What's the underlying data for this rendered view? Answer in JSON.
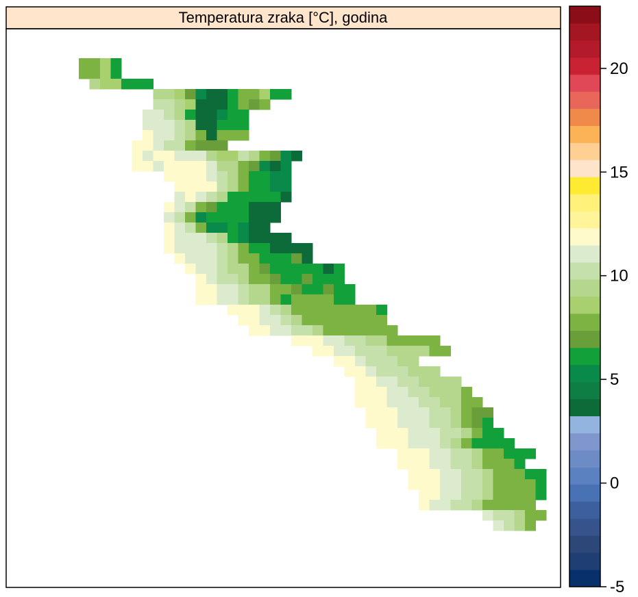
{
  "chart_data": {
    "type": "heatmap",
    "title": "Temperatura zraka [°C], godina",
    "colorbar": {
      "min": -5,
      "max": 23,
      "ticks": [
        -5,
        0,
        5,
        10,
        15,
        20
      ],
      "tick_labels": [
        "-5",
        "0",
        "5",
        "10",
        "15",
        "20"
      ],
      "colors": [
        "#08306b",
        "#1f3e73",
        "#2c4778",
        "#37538b",
        "#3c5f9e",
        "#4872b4",
        "#5b81c0",
        "#6d8cc6",
        "#7f97cd",
        "#93b4de",
        "#0d6b3a",
        "#0e7e44",
        "#098a4a",
        "#12a03b",
        "#6a9e3a",
        "#7cb342",
        "#a8d06e",
        "#b5d68d",
        "#c6e0ac",
        "#dceacd",
        "#fffacb",
        "#fff49a",
        "#fff179",
        "#ffea32",
        "#ffe4cc",
        "#ffcf93",
        "#fcb257",
        "#f08a4b",
        "#e8675a",
        "#e04858",
        "#c92233",
        "#b31b2c",
        "#a41621",
        "#8b0d18"
      ]
    },
    "grid": {
      "x_origin": 22,
      "y_origin": 55,
      "cell_width": 15.5,
      "cell_height": 15,
      "value_rows": [
        [
          2,
          6,
          [
            7.5,
            8,
            8.5,
            6.5
          ]
        ],
        [
          3,
          6,
          [
            8,
            8,
            8.5,
            6.5
          ]
        ],
        [
          4,
          7,
          [
            9,
            8.5,
            8.5,
            6,
            6,
            6
          ]
        ],
        [
          5,
          13,
          [
            9,
            9.5,
            8.5,
            7,
            5,
            4,
            4,
            6.5,
            8,
            8,
            8.5,
            6.5,
            6
          ]
        ],
        [
          6,
          13,
          [
            10.5,
            10,
            9.5,
            8.5,
            4,
            4,
            4,
            6.5,
            8,
            7,
            8
          ]
        ],
        [
          7,
          12,
          [
            11,
            11,
            10,
            9,
            6,
            4,
            4,
            5,
            6,
            6
          ]
        ],
        [
          8,
          12,
          [
            11,
            11,
            11,
            10,
            9,
            4,
            4,
            6,
            6,
            6
          ]
        ],
        [
          9,
          12,
          [
            12,
            11,
            11,
            10,
            9.5,
            8,
            3.5,
            7.5,
            8,
            8
          ]
        ],
        [
          10,
          11,
          [
            12,
            12,
            11,
            10,
            10,
            8,
            7,
            7,
            7
          ]
        ],
        [
          11,
          11,
          [
            12,
            11,
            12,
            12,
            11,
            11,
            11,
            9,
            8.5,
            8.5,
            10,
            9,
            8,
            7,
            5,
            4
          ]
        ],
        [
          12,
          11,
          [
            12,
            12,
            11,
            12,
            12,
            12,
            12,
            11,
            9,
            9,
            8,
            7,
            5,
            4,
            5
          ]
        ],
        [
          13,
          14,
          [
            12,
            12,
            12,
            12,
            11,
            10,
            9,
            8,
            6,
            6,
            5,
            5
          ]
        ],
        [
          14,
          15,
          [
            12,
            12,
            12,
            12,
            10,
            9.5,
            8,
            6,
            6,
            5.5,
            5
          ]
        ],
        [
          15,
          15,
          [
            11,
            12,
            11,
            10,
            9,
            6,
            6,
            6,
            6,
            6,
            4
          ]
        ],
        [
          16,
          14,
          [
            12,
            11,
            10,
            8,
            7,
            6,
            6,
            6,
            4,
            4,
            4
          ]
        ],
        [
          17,
          14,
          [
            11,
            10,
            8,
            5,
            6,
            6,
            6,
            6,
            4,
            4,
            4
          ]
        ],
        [
          18,
          14,
          [
            12,
            11,
            10,
            8,
            5,
            5.5,
            6,
            5,
            4,
            4
          ]
        ],
        [
          19,
          14,
          [
            12,
            11,
            11,
            11,
            10,
            9,
            6,
            5,
            4,
            4,
            4,
            4
          ]
        ],
        [
          20,
          14,
          [
            12,
            11,
            11,
            11,
            11,
            10,
            9,
            8,
            6,
            6,
            4,
            4,
            3.5,
            3.5
          ]
        ],
        [
          21,
          15,
          [
            12,
            11,
            11,
            11,
            10,
            9,
            8,
            8,
            6,
            6,
            6,
            7,
            4
          ]
        ],
        [
          22,
          16,
          [
            12,
            11,
            11,
            10,
            9,
            9,
            8,
            7,
            6,
            6,
            6,
            6,
            6,
            4,
            6
          ]
        ],
        [
          23,
          17,
          [
            12,
            11,
            10,
            10,
            9,
            8,
            8,
            7,
            6,
            6,
            7,
            6,
            6,
            6
          ]
        ],
        [
          24,
          17,
          [
            12,
            12,
            11,
            11,
            10,
            9,
            9,
            8,
            8,
            7,
            6,
            6,
            7,
            6,
            6
          ]
        ],
        [
          25,
          17,
          [
            12,
            12,
            11,
            11,
            10,
            9,
            9,
            8,
            6,
            8,
            8,
            8,
            8,
            6,
            6
          ]
        ],
        [
          26,
          20,
          [
            12,
            12,
            12,
            11,
            10,
            9,
            8,
            8,
            8,
            8,
            8,
            8,
            8,
            8,
            6
          ]
        ],
        [
          27,
          21,
          [
            12,
            12,
            11,
            11,
            10,
            9,
            8,
            8,
            8,
            8,
            8,
            8,
            8,
            8
          ]
        ],
        [
          28,
          22,
          [
            12,
            12,
            11,
            11,
            10,
            10,
            9,
            8,
            8,
            8,
            8,
            8,
            8,
            8
          ]
        ],
        [
          29,
          26,
          [
            12,
            12,
            12,
            11,
            11,
            10,
            10,
            9,
            9,
            8,
            8,
            8,
            8,
            8
          ]
        ],
        [
          30,
          28,
          [
            12,
            12,
            11,
            11,
            10,
            10,
            10,
            9,
            9,
            9,
            9,
            8,
            8
          ]
        ],
        [
          31,
          30,
          [
            12,
            12,
            11,
            10,
            10,
            10,
            9,
            9
          ]
        ],
        [
          32,
          31,
          [
            12,
            12,
            11,
            10,
            10,
            10,
            9,
            9,
            9
          ]
        ],
        [
          33,
          32,
          [
            12,
            12,
            11,
            11,
            10,
            10,
            9,
            9,
            9,
            9
          ]
        ],
        [
          34,
          32,
          [
            12,
            12,
            12,
            11,
            11,
            10,
            10,
            9,
            9,
            9,
            8
          ]
        ],
        [
          35,
          32,
          [
            12,
            12,
            12,
            11,
            11,
            11,
            10,
            10,
            9,
            9,
            8,
            8
          ]
        ],
        [
          36,
          33,
          [
            12,
            12,
            12,
            11,
            11,
            11,
            10,
            10,
            9,
            8,
            7,
            7
          ]
        ],
        [
          37,
          33,
          [
            12,
            12,
            12,
            11,
            11,
            11,
            10,
            10,
            9,
            8,
            7,
            6
          ]
        ],
        [
          38,
          34,
          [
            12,
            12,
            12,
            11,
            11,
            11,
            10,
            10,
            9,
            8,
            6,
            6
          ]
        ],
        [
          39,
          34,
          [
            12,
            12,
            12,
            11,
            11,
            11,
            10,
            9,
            8,
            6,
            6,
            6,
            6
          ]
        ],
        [
          40,
          36,
          [
            12,
            12,
            12,
            11,
            11,
            10,
            10,
            9,
            8,
            8,
            6,
            6,
            6
          ]
        ],
        [
          41,
          36,
          [
            12,
            12,
            12,
            11,
            11,
            10,
            10,
            9,
            8,
            8,
            8,
            6
          ]
        ],
        [
          42,
          37,
          [
            12,
            12,
            12,
            11,
            11,
            10,
            10,
            9,
            8,
            8,
            8,
            6,
            6
          ]
        ],
        [
          43,
          37,
          [
            12,
            12,
            12,
            11,
            11,
            10,
            10,
            9,
            8,
            8,
            8,
            8,
            6
          ]
        ],
        [
          44,
          38,
          [
            12,
            12,
            11,
            11,
            10,
            10,
            9,
            8,
            8,
            8,
            8,
            6
          ]
        ],
        [
          45,
          38,
          [
            12,
            11,
            11,
            10,
            10,
            9,
            8,
            8,
            8,
            8,
            8
          ]
        ],
        [
          46,
          44,
          [
            11,
            10,
            10,
            9,
            8,
            8
          ]
        ],
        [
          47,
          45,
          [
            11,
            10,
            9,
            8
          ]
        ]
      ],
      "top_rows": [
        [
          0,
          1,
          [
            7.5,
            8,
            8,
            6.5
          ]
        ],
        [
          1,
          1,
          [
            8,
            8,
            7,
            6.5
          ]
        ],
        [
          2,
          0,
          [
            9,
            8.5,
            7.5,
            6.5,
            6.5
          ]
        ],
        [
          3,
          0,
          [
            10,
            9.5,
            8.5,
            7,
            6,
            6,
            4,
            4,
            6.5,
            8,
            8
          ]
        ],
        [
          4,
          1,
          [
            11,
            9,
            8.5,
            8,
            4,
            4,
            4,
            6.5,
            8,
            7,
            8,
            7
          ]
        ],
        [
          5,
          2,
          [
            11,
            11,
            10,
            9,
            4,
            6,
            4,
            4,
            5,
            6,
            6
          ]
        ],
        [
          6,
          2,
          [
            11,
            11,
            11,
            10,
            9,
            4,
            4,
            5,
            6,
            6
          ]
        ],
        [
          7,
          3,
          [
            12,
            11,
            11,
            10,
            9.5,
            8,
            6,
            7.5,
            8
          ]
        ],
        [
          8,
          3,
          [
            12,
            12,
            11,
            10,
            10,
            8,
            8,
            8
          ]
        ],
        [
          9,
          4,
          [
            12,
            12,
            11,
            12,
            12,
            11,
            11,
            11,
            9,
            8.5,
            8.5,
            10,
            9,
            8,
            7,
            5,
            4
          ]
        ],
        [
          10,
          6,
          [
            12,
            12,
            12,
            12,
            12,
            11,
            11,
            9,
            9,
            8,
            7,
            5,
            4,
            5
          ]
        ],
        [
          11,
          8,
          [
            12,
            12,
            12,
            12,
            11,
            10,
            9,
            8,
            6,
            6,
            5,
            5,
            4
          ]
        ],
        [
          12,
          11,
          [
            12,
            12,
            11,
            10,
            9.5,
            8,
            6,
            6,
            5.5,
            5,
            4
          ]
        ],
        [
          13,
          10,
          [
            12,
            12,
            12,
            11,
            10,
            9,
            6,
            6,
            6,
            6,
            6,
            4
          ]
        ],
        [
          14,
          8,
          [
            12,
            12,
            12,
            11,
            10,
            8,
            7,
            6,
            6,
            6,
            4,
            4,
            4
          ]
        ],
        [
          15,
          8,
          [
            12,
            12,
            11,
            11,
            10,
            8,
            5,
            6,
            6,
            6,
            6,
            4,
            4,
            4
          ]
        ],
        [
          16,
          8,
          [
            12,
            12,
            10,
            11,
            10,
            8,
            5,
            5.5,
            6,
            5,
            4,
            4,
            4
          ]
        ],
        [
          17,
          7,
          [
            12,
            12,
            11,
            12,
            11,
            11,
            10,
            9,
            6,
            5,
            4,
            4,
            4,
            4,
            4
          ]
        ],
        [
          18,
          7,
          [
            12,
            12,
            12,
            11,
            11,
            11,
            11,
            10,
            9,
            8,
            6,
            6,
            4,
            4,
            4
          ]
        ]
      ]
    }
  }
}
